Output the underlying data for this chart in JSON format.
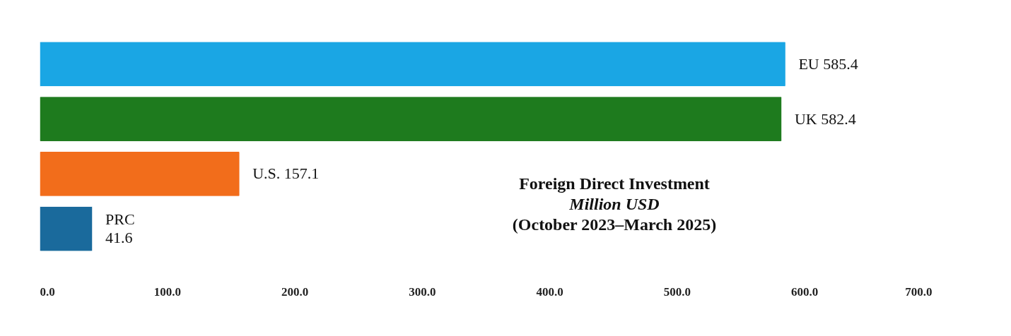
{
  "chart_data": {
    "type": "bar",
    "orientation": "horizontal",
    "title": "Foreign Direct Investment",
    "subtitle": "Million USD",
    "annotations": [
      "(October 2023–March 2025)"
    ],
    "categories": [
      "EU",
      "UK",
      "U.S.",
      "PRC"
    ],
    "values": [
      585.4,
      582.4,
      157.1,
      41.6
    ],
    "colors": [
      "#1aa6e4",
      "#1e7b1e",
      "#f26d1b",
      "#1a6a9c"
    ],
    "data_labels": true,
    "xlim": [
      0,
      700
    ],
    "xticks": [
      {
        "value": 0,
        "label": "0.0"
      },
      {
        "value": 100,
        "label": "100.0"
      },
      {
        "value": 200,
        "label": "200.0"
      },
      {
        "value": 300,
        "label": "300.0"
      },
      {
        "value": 400,
        "label": "400.0"
      },
      {
        "value": 500,
        "label": "500.0"
      },
      {
        "value": 600,
        "label": "600.0"
      },
      {
        "value": 700,
        "label": "700.0"
      }
    ],
    "tick_labels": "x",
    "grid": false
  }
}
